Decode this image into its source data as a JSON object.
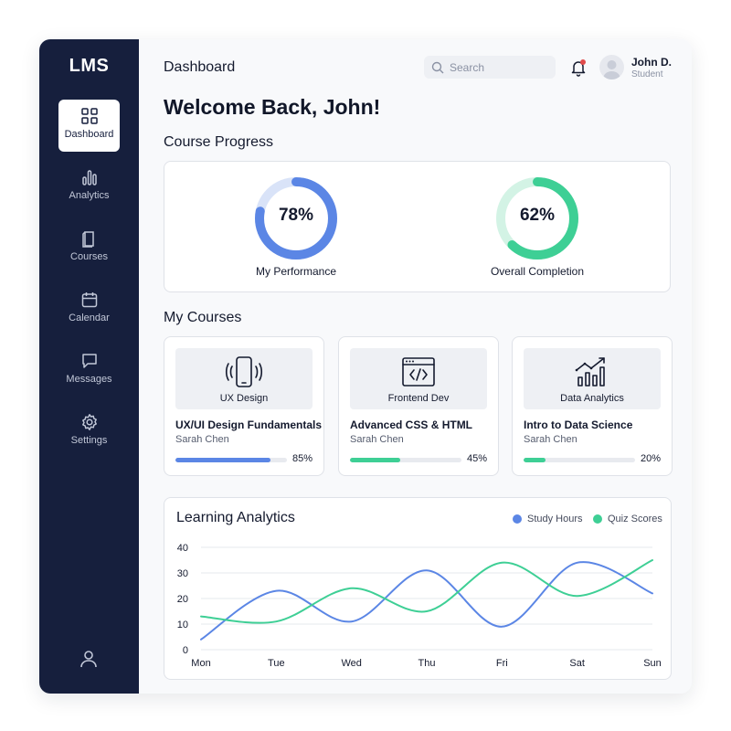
{
  "sidebar": {
    "logo": "LMS",
    "items": [
      {
        "label": "Dashboard",
        "icon": "dashboard-grid-icon",
        "active": true
      },
      {
        "label": "Analytics",
        "icon": "analytics-bars-icon"
      },
      {
        "label": "Courses",
        "icon": "courses-book-icon"
      },
      {
        "label": "Calendar",
        "icon": "calendar-icon"
      },
      {
        "label": "Messages",
        "icon": "message-bubble-icon"
      },
      {
        "label": "Settings",
        "icon": "gear-icon"
      }
    ],
    "footer_icon": "user-profile-icon"
  },
  "header": {
    "title": "Dashboard",
    "search_placeholder": "Search",
    "user_name": "John D.",
    "user_role": "Student"
  },
  "welcome": "Welcome Back, John!",
  "course_progress": {
    "title": "Course Progress",
    "items": [
      {
        "value": "78%",
        "fraction": 0.78,
        "label": "My Performance",
        "color": "#5b86e5",
        "track": "#d9e3f8"
      },
      {
        "value": "62%",
        "fraction": 0.62,
        "label": "Overall Completion",
        "color": "#3ecf95",
        "track": "#d3f3e5"
      }
    ]
  },
  "my_courses": {
    "title": "My Courses",
    "items": [
      {
        "category": "UX Design",
        "icon": "mobile-phone-icon",
        "title": "UX/UI Design Fundamentals",
        "instructor": "Sarah Chen",
        "progress": "85%",
        "fraction": 0.85,
        "color": "#5b86e5"
      },
      {
        "category": "Frontend Dev",
        "icon": "code-window-icon",
        "title": "Advanced CSS & HTML",
        "instructor": "Sarah Chen",
        "progress": "45%",
        "fraction": 0.45,
        "color": "#3ecf95"
      },
      {
        "category": "Data Analytics",
        "icon": "bar-chart-trend-icon",
        "title": "Intro to Data Science",
        "instructor": "Sarah Chen",
        "progress": "20%",
        "fraction": 0.2,
        "color": "#3ecf95"
      }
    ]
  },
  "learning_analytics": {
    "title": "Learning Analytics"
  },
  "chart_data": {
    "type": "line",
    "title": "Learning Analytics",
    "categories": [
      "Mon",
      "Tue",
      "Wed",
      "Thu",
      "Fri",
      "Sat",
      "Sun"
    ],
    "ylim": [
      0,
      40
    ],
    "yticks": [
      0,
      10,
      20,
      30,
      40
    ],
    "grid": true,
    "legend_position": "top-right",
    "series": [
      {
        "name": "Study Hours",
        "color": "#5b86e5",
        "values": [
          4,
          23,
          11,
          31,
          9,
          34,
          22
        ]
      },
      {
        "name": "Quiz Scores",
        "color": "#3ecf95",
        "values": [
          13,
          11,
          24,
          15,
          34,
          21,
          35
        ]
      }
    ]
  }
}
